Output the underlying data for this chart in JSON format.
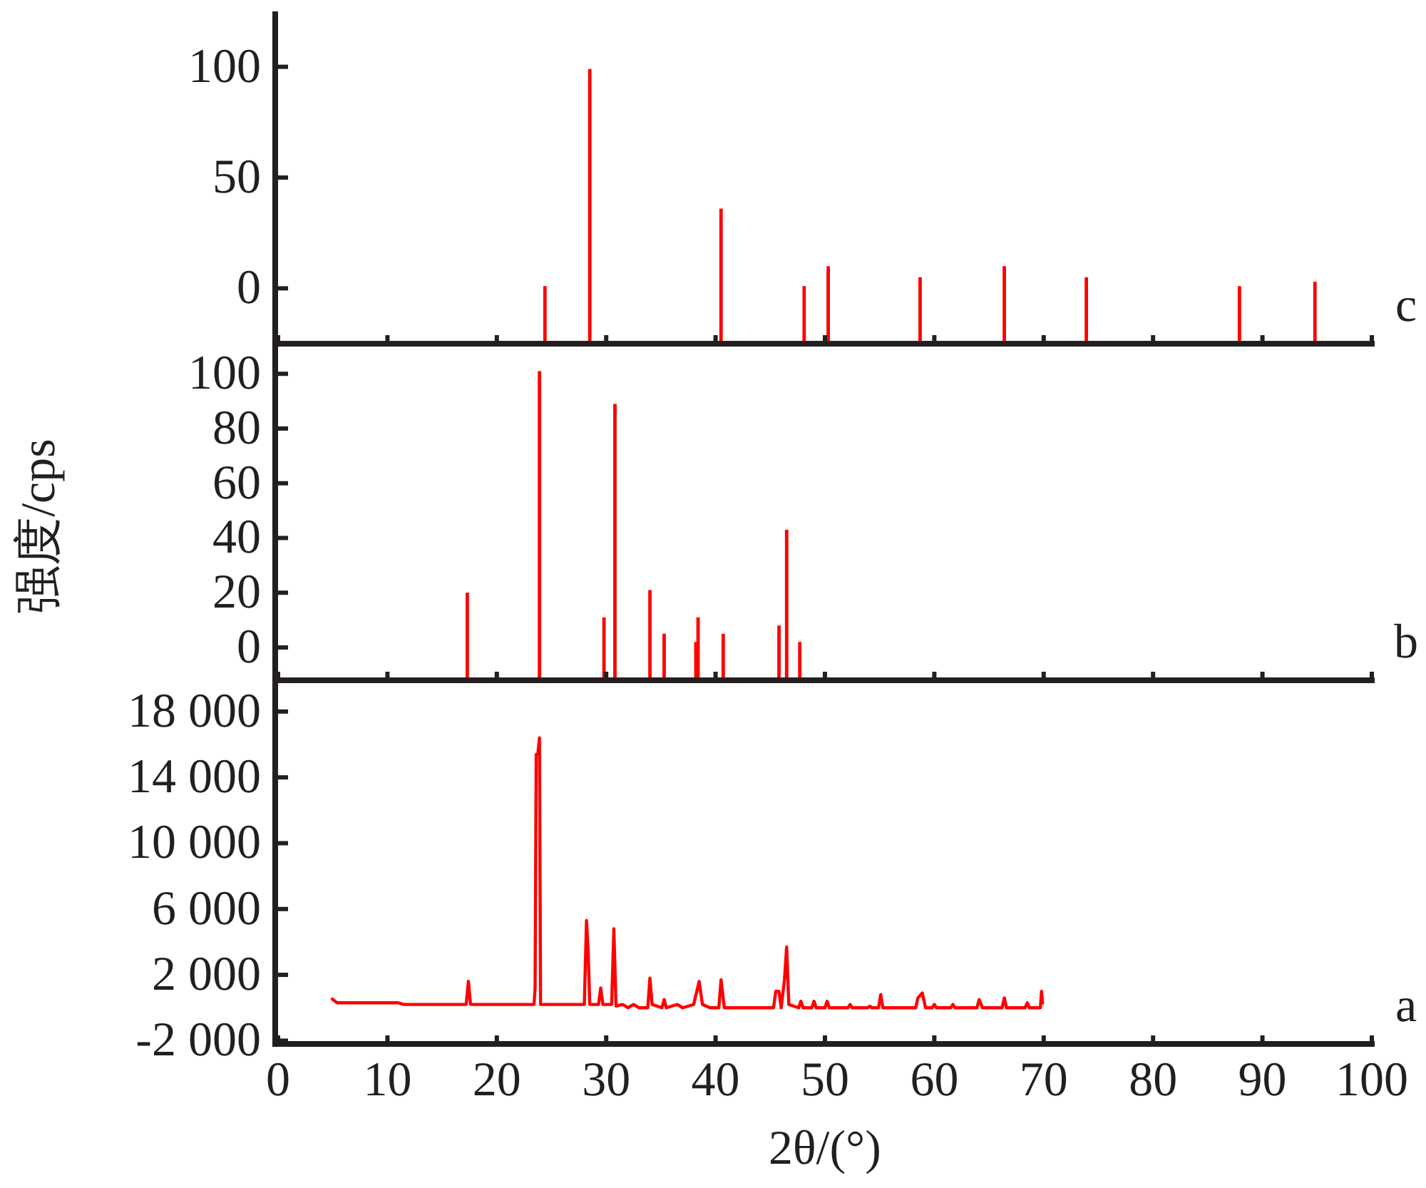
{
  "chart_data": [
    {
      "type": "bar",
      "x": [
        24.4,
        28.5,
        40.5,
        48.1,
        50.3,
        58.7,
        66.4,
        73.9,
        87.9,
        94.8
      ],
      "base": [
        -25,
        -25,
        -25,
        -25,
        -25,
        -25,
        -25,
        -25,
        -25,
        -25
      ],
      "values": [
        26,
        124,
        61,
        26,
        35,
        30,
        35,
        30,
        26,
        28
      ],
      "color": "#ff0000",
      "xlim": [
        0,
        100
      ],
      "xticks": [
        0,
        10,
        20,
        30,
        40,
        50,
        60,
        70,
        80,
        90,
        100
      ],
      "ylim": [
        -25,
        125
      ],
      "yticks": [
        0,
        50,
        100
      ],
      "tick_labels": "y",
      "annotations": [
        "c"
      ]
    },
    {
      "type": "bar",
      "x": [
        17.3,
        23.9,
        29.8,
        30.8,
        34.0,
        35.3,
        38.2,
        38.4,
        40.7,
        45.8,
        46.5,
        47.7
      ],
      "base": [
        -12,
        -12,
        -12,
        -12,
        -12,
        -12,
        -12,
        -12,
        -12,
        -12,
        -12,
        -12
      ],
      "values": [
        32,
        113,
        23,
        101,
        33,
        17,
        14,
        23,
        17,
        20,
        55,
        14
      ],
      "color": "#ff0000",
      "xlim": [
        0,
        100
      ],
      "xticks": [
        0,
        10,
        20,
        30,
        40,
        50,
        60,
        70,
        80,
        90,
        100
      ],
      "ylim": [
        -12,
        111
      ],
      "yticks": [
        0,
        20,
        40,
        60,
        80,
        100
      ],
      "tick_labels": "y",
      "ylabel": "强度/cps",
      "annotations": [
        "b"
      ]
    },
    {
      "type": "line",
      "xlabel": "2θ/(°)",
      "color": "#ff0000",
      "x": [
        4.9,
        5.0,
        5.4,
        11.0,
        11.5,
        17.2,
        17.4,
        17.6,
        23.4,
        23.5,
        23.6,
        23.75,
        23.9,
        24.0,
        28.0,
        28.2,
        28.35,
        28.5,
        29.3,
        29.5,
        29.7,
        30.5,
        30.7,
        30.9,
        31.5,
        32.0,
        32.5,
        33.0,
        33.8,
        34.0,
        34.2,
        35.1,
        35.3,
        35.5,
        36.5,
        37.0,
        38.0,
        38.5,
        38.8,
        39.5,
        40.3,
        40.5,
        40.8,
        45.3,
        45.5,
        45.8,
        46.0,
        46.3,
        46.5,
        46.7,
        47.6,
        47.8,
        48.0,
        48.8,
        49.0,
        49.2,
        50.0,
        50.2,
        50.4,
        52.1,
        52.3,
        52.5,
        53.9,
        54.1,
        54.3,
        54.9,
        55.1,
        55.3,
        58.3,
        58.5,
        58.9,
        59.2,
        59.8,
        60.0,
        60.2,
        61.5,
        61.7,
        61.9,
        63.9,
        64.1,
        64.4,
        66.2,
        66.4,
        66.6,
        68.3,
        68.5,
        68.7,
        69.7,
        69.8,
        69.9
      ],
      "values": [
        600,
        500,
        300,
        300,
        200,
        200,
        1600,
        200,
        200,
        1200,
        15400,
        15400,
        16400,
        200,
        200,
        5300,
        3500,
        200,
        200,
        1200,
        200,
        200,
        4800,
        100,
        200,
        0,
        200,
        0,
        0,
        1800,
        200,
        0,
        500,
        0,
        200,
        0,
        200,
        1600,
        200,
        0,
        0,
        1700,
        0,
        0,
        1000,
        1000,
        0,
        1700,
        3700,
        200,
        0,
        400,
        0,
        0,
        400,
        0,
        0,
        400,
        0,
        0,
        200,
        0,
        0,
        100,
        0,
        0,
        800,
        0,
        0,
        600,
        900,
        0,
        0,
        200,
        0,
        0,
        200,
        0,
        0,
        500,
        0,
        0,
        600,
        0,
        0,
        300,
        0,
        0,
        1000,
        200
      ],
      "xlim": [
        0,
        100
      ],
      "xticks": [
        0,
        10,
        20,
        30,
        40,
        50,
        60,
        70,
        80,
        90,
        100
      ],
      "ylim": [
        -2200,
        19900
      ],
      "yticks": [
        {
          "value": -2000,
          "label": "-2 000"
        },
        {
          "value": 2000,
          "label": "2 000"
        },
        {
          "value": 6000,
          "label": "6 000"
        },
        {
          "value": 10000,
          "label": "10 000"
        },
        {
          "value": 14000,
          "label": "14 000"
        },
        {
          "value": 18000,
          "label": "18 000"
        }
      ],
      "annotations": [
        "a"
      ]
    }
  ]
}
